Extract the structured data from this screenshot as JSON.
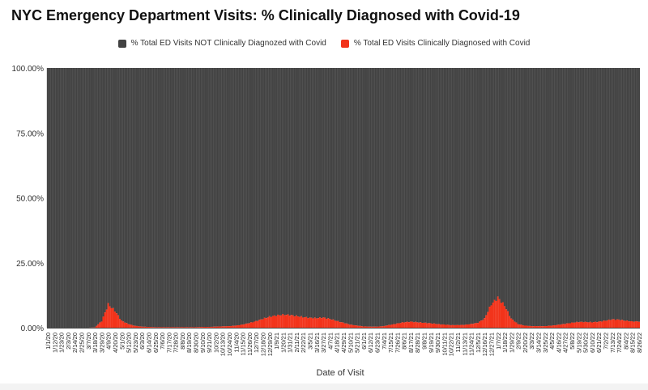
{
  "chart_data": {
    "type": "bar",
    "stacked": true,
    "normalized_percent": true,
    "title": "NYC Emergency Department Visits: % Clinically Diagnosed with Covid-19",
    "xlabel": "Date of Visit",
    "ylabel": "",
    "ylim": [
      0,
      100
    ],
    "y_ticks": [
      "0.00%",
      "25.00%",
      "50.00%",
      "75.00%",
      "100.00%"
    ],
    "legend_position": "top",
    "grid": false,
    "colors": {
      "not_covid": "#424242",
      "covid": "#f2331a"
    },
    "x_tick_labels": [
      "1/1/20",
      "1/12/20",
      "1/23/20",
      "2/3/20",
      "2/14/20",
      "2/25/20",
      "3/7/20",
      "3/18/20",
      "3/29/20",
      "4/9/20",
      "4/20/20",
      "5/1/20",
      "5/12/20",
      "5/23/20",
      "6/3/20",
      "6/14/20",
      "6/25/20",
      "7/6/20",
      "7/17/20",
      "7/28/20",
      "8/8/20",
      "8/19/20",
      "8/30/20",
      "9/10/20",
      "9/21/20",
      "10/2/20",
      "10/13/20",
      "10/24/20",
      "11/4/20",
      "11/15/20",
      "11/26/20",
      "12/7/20",
      "12/18/20",
      "12/29/20",
      "1/9/21",
      "1/20/21",
      "1/31/21",
      "2/11/21",
      "2/22/21",
      "3/5/21",
      "3/16/21",
      "3/27/21",
      "4/7/21",
      "4/18/21",
      "4/29/21",
      "5/10/21",
      "5/21/21",
      "6/1/21",
      "6/12/21",
      "6/23/21",
      "7/4/21",
      "7/15/21",
      "7/26/21",
      "8/6/21",
      "8/17/21",
      "8/28/21",
      "9/8/21",
      "9/19/21",
      "9/30/21",
      "10/11/21",
      "10/22/21",
      "11/2/21",
      "11/13/21",
      "11/24/21",
      "12/5/21",
      "12/16/21",
      "12/27/21",
      "1/7/22",
      "1/18/22",
      "1/29/22",
      "2/9/22",
      "2/20/22",
      "3/3/22",
      "3/14/22",
      "3/25/22",
      "4/5/22",
      "4/16/22",
      "4/27/22",
      "5/8/22",
      "5/19/22",
      "5/30/22",
      "6/10/22",
      "6/21/22",
      "7/2/22",
      "7/13/22",
      "7/24/22",
      "8/4/22",
      "8/15/22",
      "8/26/22"
    ],
    "series": [
      {
        "name": "% Total ED Visits NOT Clinically Diagnozed with Covid",
        "values": [
          100.0,
          100.0,
          100.0,
          100.0,
          100.0,
          100.0,
          100.0,
          99.9,
          97.5,
          91.0,
          93.5,
          97.3,
          98.6,
          99.3,
          99.6,
          99.7,
          99.8,
          99.8,
          99.8,
          99.8,
          99.8,
          99.8,
          99.8,
          99.7,
          99.7,
          99.6,
          99.5,
          99.4,
          99.2,
          98.8,
          98.2,
          97.5,
          96.6,
          95.8,
          95.3,
          95.0,
          95.1,
          95.5,
          95.9,
          96.2,
          96.3,
          96.1,
          96.6,
          97.4,
          98.1,
          98.8,
          99.2,
          99.5,
          99.6,
          99.6,
          99.4,
          98.9,
          98.4,
          97.9,
          97.7,
          97.9,
          98.1,
          98.3,
          98.6,
          98.8,
          99.0,
          99.0,
          98.9,
          98.6,
          98.1,
          96.5,
          91.0,
          88.4,
          91.5,
          96.5,
          98.6,
          99.2,
          99.4,
          99.4,
          99.4,
          99.2,
          98.9,
          98.5,
          98.1,
          97.8,
          97.8,
          97.9,
          97.7,
          97.3,
          96.8,
          96.9,
          97.3,
          97.6,
          97.6
        ],
        "note_x": "values at each labeled tick date; bars drawn between ticks are interpolated"
      },
      {
        "name": "% Total ED Visits Clinically Diagnosed with Covid",
        "values": [
          0.0,
          0.0,
          0.0,
          0.0,
          0.0,
          0.0,
          0.0,
          0.1,
          2.5,
          9.0,
          6.5,
          2.7,
          1.4,
          0.7,
          0.4,
          0.3,
          0.2,
          0.2,
          0.2,
          0.2,
          0.2,
          0.2,
          0.2,
          0.3,
          0.3,
          0.4,
          0.5,
          0.6,
          0.8,
          1.2,
          1.8,
          2.5,
          3.4,
          4.2,
          4.7,
          5.0,
          4.9,
          4.5,
          4.1,
          3.8,
          3.7,
          3.9,
          3.4,
          2.6,
          1.9,
          1.2,
          0.8,
          0.5,
          0.4,
          0.4,
          0.6,
          1.1,
          1.6,
          2.1,
          2.3,
          2.1,
          1.9,
          1.7,
          1.4,
          1.2,
          1.0,
          1.0,
          1.1,
          1.4,
          1.9,
          3.5,
          9.0,
          11.6,
          8.5,
          3.5,
          1.4,
          0.8,
          0.6,
          0.6,
          0.6,
          0.8,
          1.1,
          1.5,
          1.9,
          2.2,
          2.2,
          2.1,
          2.3,
          2.7,
          3.2,
          3.1,
          2.7,
          2.4,
          2.4
        ]
      }
    ]
  }
}
